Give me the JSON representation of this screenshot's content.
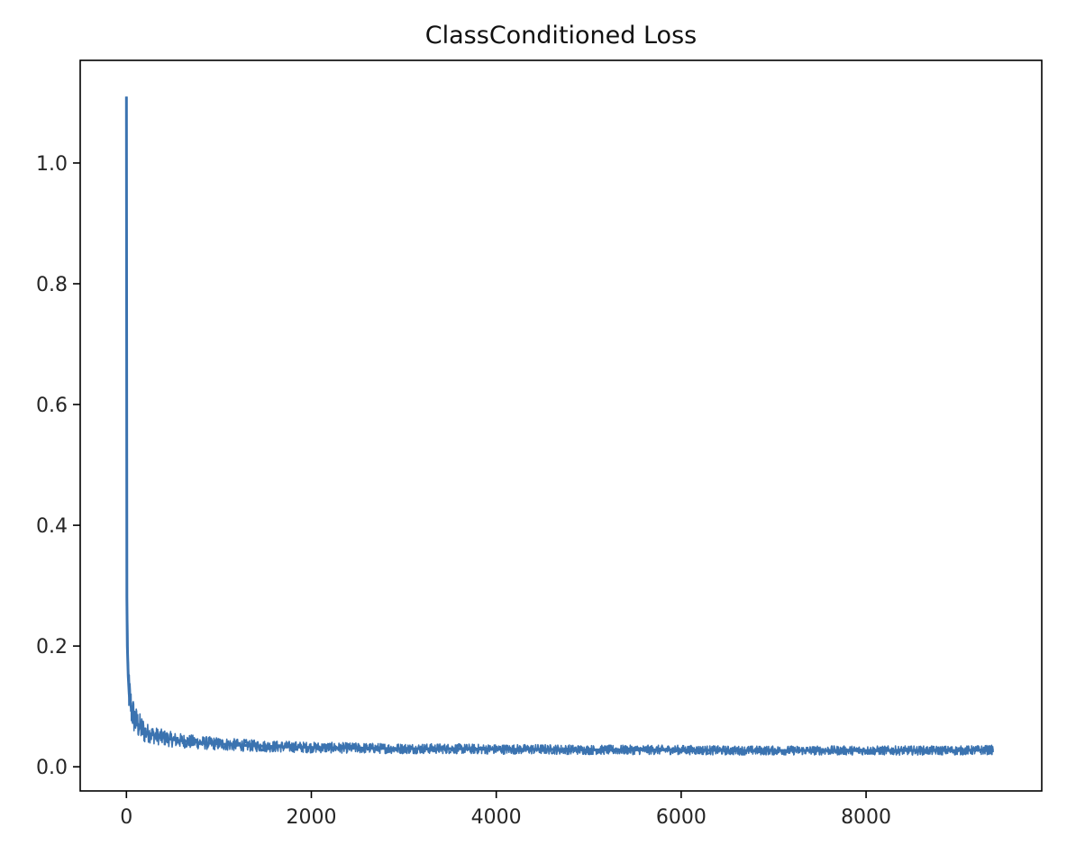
{
  "chart_data": {
    "type": "line",
    "title": "ClassConditioned Loss",
    "xlabel": "",
    "ylabel": "",
    "xlim": [
      -500,
      9900
    ],
    "ylim": [
      -0.04,
      1.17
    ],
    "xticks": [
      0,
      2000,
      4000,
      6000,
      8000
    ],
    "xtick_labels": [
      "0",
      "2000",
      "4000",
      "6000",
      "8000"
    ],
    "yticks": [
      0.0,
      0.2,
      0.4,
      0.6,
      0.8,
      1.0
    ],
    "ytick_labels": [
      "0.0",
      "0.2",
      "0.4",
      "0.6",
      "0.8",
      "1.0"
    ],
    "grid": false,
    "legend": "none",
    "color": "#3b73b0",
    "series": [
      {
        "x": [
          0,
          5,
          10,
          20,
          30,
          50,
          75,
          100,
          150,
          200,
          300,
          400,
          500,
          600,
          800,
          1000,
          1200,
          1500,
          1800,
          2000,
          2500,
          3000,
          3500,
          4000,
          4500,
          5000,
          5500,
          6000,
          6500,
          7000,
          7500,
          8000,
          8500,
          9000,
          9380
        ],
        "y": [
          1.11,
          0.28,
          0.2,
          0.15,
          0.12,
          0.1,
          0.085,
          0.075,
          0.065,
          0.058,
          0.052,
          0.048,
          0.045,
          0.043,
          0.04,
          0.038,
          0.036,
          0.034,
          0.033,
          0.032,
          0.031,
          0.03,
          0.03,
          0.029,
          0.029,
          0.028,
          0.028,
          0.028,
          0.027,
          0.027,
          0.027,
          0.027,
          0.027,
          0.027,
          0.028
        ]
      }
    ]
  }
}
